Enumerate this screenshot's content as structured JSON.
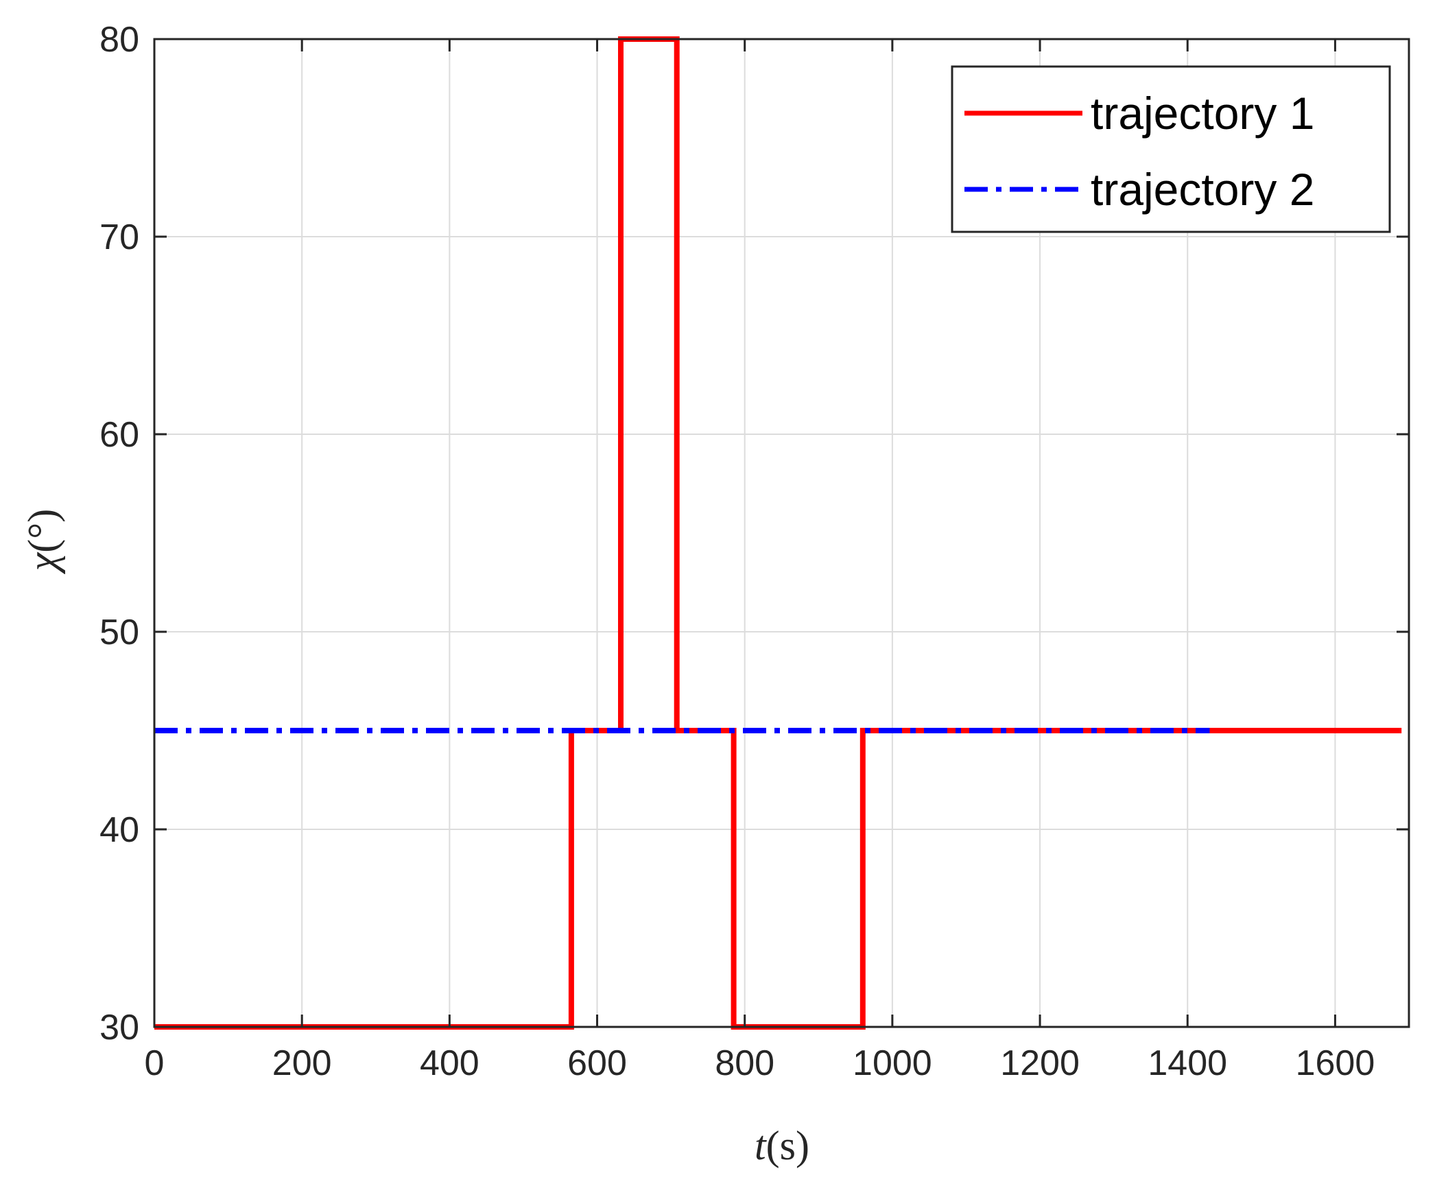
{
  "chart_data": {
    "type": "line",
    "xlabel_italic": "t",
    "xlabel_rest": "(s)",
    "ylabel_italic": "χ",
    "ylabel_rest": "(°)",
    "xlim": [
      0,
      1700
    ],
    "ylim": [
      30,
      80
    ],
    "xticks": [
      0,
      200,
      400,
      600,
      800,
      1000,
      1200,
      1400,
      1600
    ],
    "yticks": [
      30,
      40,
      50,
      60,
      70,
      80
    ],
    "grid": true,
    "legend_position": "top-right",
    "series": [
      {
        "name": "trajectory 1",
        "color": "#ff0000",
        "style": "solid",
        "x": [
          0,
          565,
          565,
          632,
          632,
          708,
          708,
          785,
          785,
          960,
          960,
          1690
        ],
        "y": [
          30,
          30,
          45,
          45,
          80,
          80,
          45,
          45,
          30,
          30,
          45,
          45
        ]
      },
      {
        "name": "trajectory 2",
        "color": "#0000ff",
        "style": "dashdot",
        "x": [
          0,
          1430
        ],
        "y": [
          45,
          45
        ]
      }
    ]
  }
}
